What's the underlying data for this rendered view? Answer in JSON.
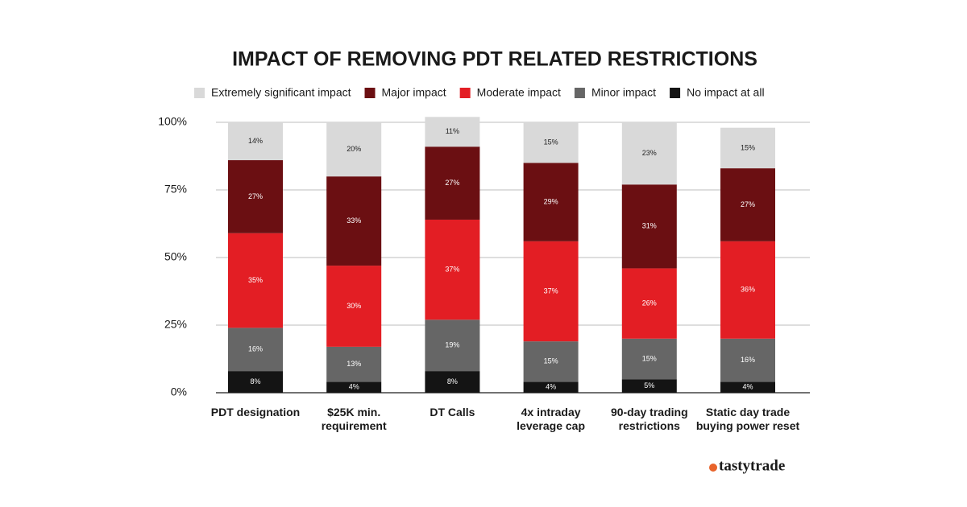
{
  "chart_data": {
    "type": "stacked-bar",
    "title": "IMPACT OF REMOVING PDT RELATED RESTRICTIONS",
    "categories": [
      "PDT designation",
      "$25K min. requirement",
      "DT Calls",
      "4x intraday leverage cap",
      "90-day trading restrictions",
      "Static day trade buying power reset"
    ],
    "series": [
      {
        "name": "Extremely significant impact",
        "color": "#d9d9d9",
        "values": [
          14,
          20,
          11,
          15,
          23,
          15
        ],
        "value_labels": [
          "14%",
          "20%",
          "11%",
          "15%",
          "23%",
          "15%"
        ]
      },
      {
        "name": "Major impact",
        "color": "#6b0f12",
        "values": [
          27,
          33,
          27,
          29,
          31,
          27
        ],
        "value_labels": [
          "27%",
          "33%",
          "27%",
          "29%",
          "31%",
          "27%"
        ]
      },
      {
        "name": "Moderate impact",
        "color": "#e31e24",
        "values": [
          35,
          30,
          37,
          37,
          26,
          36
        ],
        "value_labels": [
          "35%",
          "30%",
          "37%",
          "37%",
          "26%",
          "36%"
        ]
      },
      {
        "name": "Minor impact",
        "color": "#666666",
        "values": [
          16,
          13,
          19,
          15,
          15,
          16
        ],
        "value_labels": [
          "16%",
          "13%",
          "19%",
          "15%",
          "15%",
          "16%"
        ]
      },
      {
        "name": "No impact at all",
        "color": "#141414",
        "values": [
          8,
          4,
          8,
          4,
          5,
          4
        ],
        "value_labels": [
          "8%",
          "4%",
          "8%",
          "4%",
          "5%",
          "4%"
        ]
      }
    ],
    "ylim": [
      0,
      100
    ],
    "yticks": [
      {
        "value": 0,
        "label": "0%"
      },
      {
        "value": 25,
        "label": "25%"
      },
      {
        "value": 50,
        "label": "50%"
      },
      {
        "value": 75,
        "label": "75%"
      },
      {
        "value": 100,
        "label": "100%"
      }
    ],
    "grid": true
  },
  "brand": "tastytrade"
}
